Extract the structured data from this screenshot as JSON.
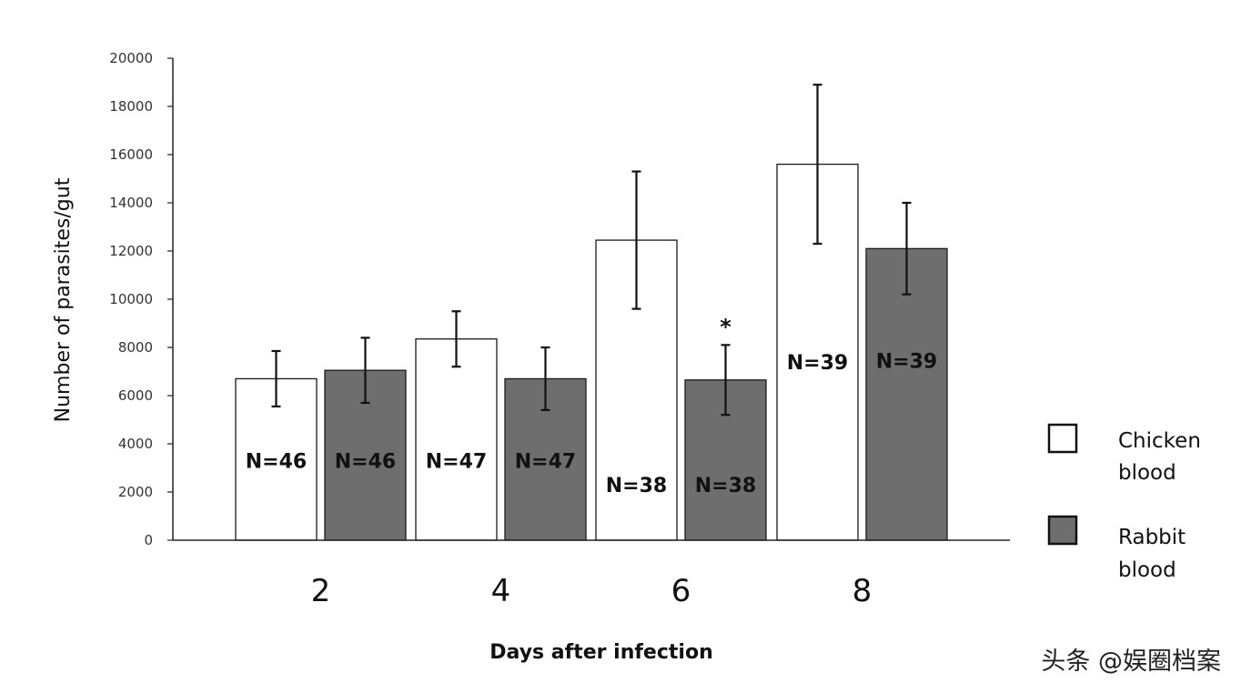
{
  "chart_data": {
    "type": "bar",
    "categories": [
      "2",
      "4",
      "6",
      "8"
    ],
    "series": [
      {
        "name": "Chicken blood",
        "color": "#ffffff",
        "values": [
          6700,
          8350,
          12450,
          15600
        ],
        "errors": [
          1150,
          1150,
          2850,
          3300
        ],
        "n_labels": [
          "N=46",
          "N=47",
          "N=38",
          "N=39"
        ],
        "n_label_values": [
          3300,
          3300,
          2300,
          7400
        ]
      },
      {
        "name": "Rabbit blood",
        "color": "#6e6e6e",
        "values": [
          7050,
          6700,
          6650,
          12100
        ],
        "errors": [
          1350,
          1300,
          1450,
          1900
        ],
        "n_labels": [
          "N=46",
          "N=47",
          "N=38",
          "N=39"
        ],
        "n_label_values": [
          3300,
          3300,
          2300,
          7450
        ]
      }
    ],
    "yticks": [
      "0",
      "2000",
      "4000",
      "6000",
      "8000",
      "10000",
      "12000",
      "14000",
      "16000",
      "18000",
      "20000"
    ],
    "ylim": [
      0,
      20000
    ],
    "ylabel": "Number of parasites/gut",
    "xlabel": "Days after infection",
    "annotation": {
      "text": "*",
      "category": "6",
      "series": "Rabbit blood"
    },
    "legend": {
      "position": "right",
      "items": [
        {
          "line1": "Chicken",
          "line2": "blood",
          "color": "#ffffff"
        },
        {
          "line1": "Rabbit",
          "line2": "blood",
          "color": "#6e6e6e"
        }
      ]
    },
    "grid": false
  },
  "watermark": "头条 @娱圈档案"
}
